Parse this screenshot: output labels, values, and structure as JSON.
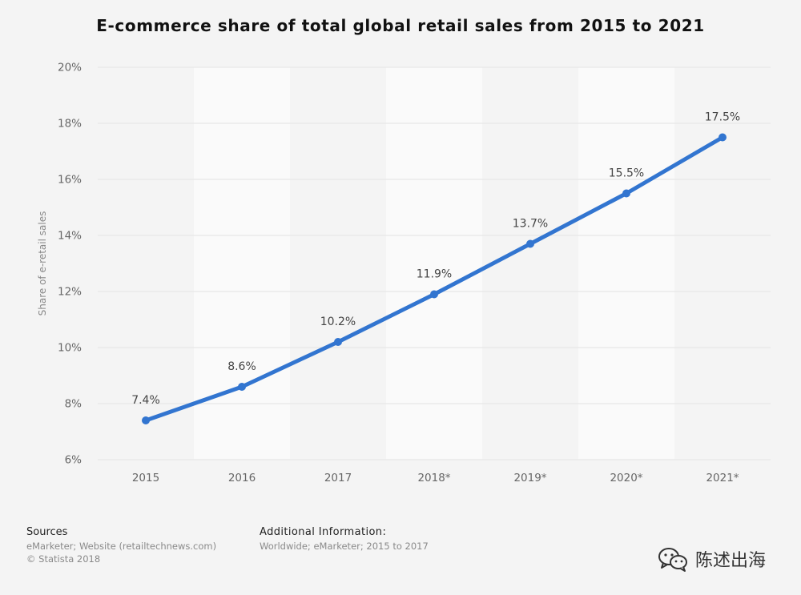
{
  "chart_data": {
    "type": "line",
    "title": "E-commerce share of total global retail sales from 2015 to 2021",
    "xlabel": "",
    "ylabel": "Share of e-retail sales",
    "categories": [
      "2015",
      "2016",
      "2017",
      "2018*",
      "2019*",
      "2020*",
      "2021*"
    ],
    "values": [
      7.4,
      8.6,
      10.2,
      11.9,
      13.7,
      15.5,
      17.5
    ],
    "data_labels": [
      "7.4%",
      "8.6%",
      "10.2%",
      "11.9%",
      "13.7%",
      "15.5%",
      "17.5%"
    ],
    "ylim": [
      6,
      20
    ],
    "yticks": [
      6,
      8,
      10,
      12,
      14,
      16,
      18,
      20
    ],
    "ytick_labels": [
      "6%",
      "8%",
      "10%",
      "12%",
      "14%",
      "16%",
      "18%",
      "20%"
    ],
    "grid": true,
    "legend": "none",
    "line_color": "#3275d0"
  },
  "footer": {
    "sources_title": "Sources",
    "sources_line1": "eMarketer; Website (retailtechnews.com)",
    "sources_line2": "© Statista 2018",
    "additional_title": "Additional Information:",
    "additional_line1": "Worldwide; eMarketer; 2015 to 2017"
  },
  "watermark": {
    "text": "陈述出海",
    "icon": "wechat-icon"
  }
}
